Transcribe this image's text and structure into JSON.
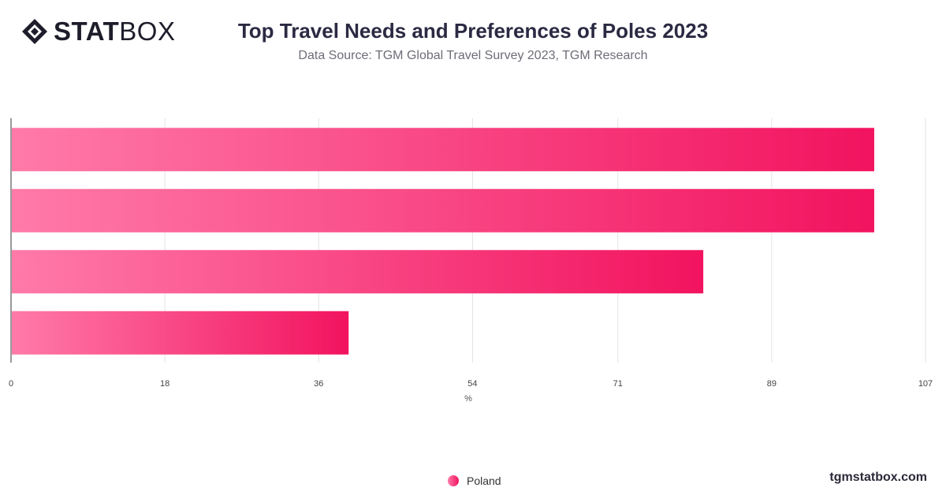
{
  "brand": {
    "logo_bold": "STAT",
    "logo_light": "BOX",
    "credit": "tgmstatbox.com"
  },
  "header": {
    "title": "Top Travel Needs and Preferences of Poles 2023",
    "subtitle": "Data Source: TGM Global Travel Survey 2023, TGM Research"
  },
  "colors": {
    "bar_start": "#ff7aa9",
    "bar_end": "#f2135f",
    "grid": "#e3e3e3",
    "axis": "#333333"
  },
  "chart_data": {
    "type": "bar",
    "orientation": "horizontal",
    "categories": [
      "",
      "",
      "",
      ""
    ],
    "series": [
      {
        "name": "Poland",
        "values": [
          101,
          101,
          81,
          39.5
        ]
      }
    ],
    "xlabel": "%",
    "xlim": [
      0,
      107
    ],
    "xticks": [
      0,
      18,
      36,
      54,
      71,
      89,
      107
    ],
    "grid": true,
    "legend": "bottom-center"
  }
}
